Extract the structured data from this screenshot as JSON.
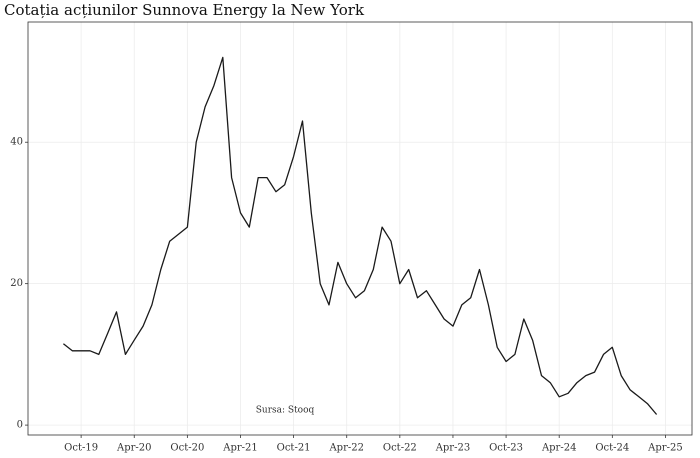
{
  "chart_data": {
    "type": "line",
    "title": "Cotația acțiunilor Sunnova Energy la New York",
    "annotation": "Sursa: Stooq",
    "x": [
      "2019-08",
      "2019-09",
      "2019-10",
      "2019-11",
      "2019-12",
      "2020-01",
      "2020-02",
      "2020-03",
      "2020-04",
      "2020-05",
      "2020-06",
      "2020-07",
      "2020-08",
      "2020-09",
      "2020-10",
      "2020-11",
      "2020-12",
      "2021-01",
      "2021-02",
      "2021-03",
      "2021-04",
      "2021-05",
      "2021-06",
      "2021-07",
      "2021-08",
      "2021-09",
      "2021-10",
      "2021-11",
      "2021-12",
      "2022-01",
      "2022-02",
      "2022-03",
      "2022-04",
      "2022-05",
      "2022-06",
      "2022-07",
      "2022-08",
      "2022-09",
      "2022-10",
      "2022-11",
      "2022-12",
      "2023-01",
      "2023-02",
      "2023-03",
      "2023-04",
      "2023-05",
      "2023-06",
      "2023-07",
      "2023-08",
      "2023-09",
      "2023-10",
      "2023-11",
      "2023-12",
      "2024-01",
      "2024-02",
      "2024-03",
      "2024-04",
      "2024-05",
      "2024-06",
      "2024-07",
      "2024-08",
      "2024-09",
      "2024-10",
      "2024-11",
      "2024-12",
      "2025-01",
      "2025-02",
      "2025-03"
    ],
    "series": [
      {
        "name": "Sunnova Energy",
        "color": "#1a1a1a",
        "values": [
          11.5,
          10.5,
          10.5,
          10.5,
          10,
          13,
          16,
          10,
          12,
          14,
          17,
          22,
          26,
          27,
          28,
          40,
          45,
          48,
          52,
          35,
          30,
          28,
          35,
          35,
          33,
          34,
          38,
          43,
          30,
          20,
          17,
          23,
          20,
          18,
          19,
          22,
          28,
          26,
          20,
          22,
          18,
          19,
          17,
          15,
          14,
          17,
          18,
          22,
          17,
          11,
          9,
          10,
          15,
          12,
          7,
          6,
          4,
          4.5,
          6,
          7,
          7.5,
          10,
          11,
          7,
          5,
          4,
          3,
          1.5
        ]
      }
    ],
    "xlim": [
      "2019-04",
      "2025-07"
    ],
    "xticks": [
      {
        "value": "2019-10",
        "label": "Oct-19"
      },
      {
        "value": "2020-04",
        "label": "Apr-20"
      },
      {
        "value": "2020-10",
        "label": "Oct-20"
      },
      {
        "value": "2021-04",
        "label": "Apr-21"
      },
      {
        "value": "2021-10",
        "label": "Oct-21"
      },
      {
        "value": "2022-04",
        "label": "Apr-22"
      },
      {
        "value": "2022-10",
        "label": "Oct-22"
      },
      {
        "value": "2023-04",
        "label": "Apr-23"
      },
      {
        "value": "2023-10",
        "label": "Oct-23"
      },
      {
        "value": "2024-04",
        "label": "Apr-24"
      },
      {
        "value": "2024-10",
        "label": "Oct-24"
      },
      {
        "value": "2025-04",
        "label": "Apr-25"
      }
    ],
    "ylim": [
      -1.4,
      57
    ],
    "yticks": [
      0,
      20,
      40
    ],
    "grid": true
  }
}
